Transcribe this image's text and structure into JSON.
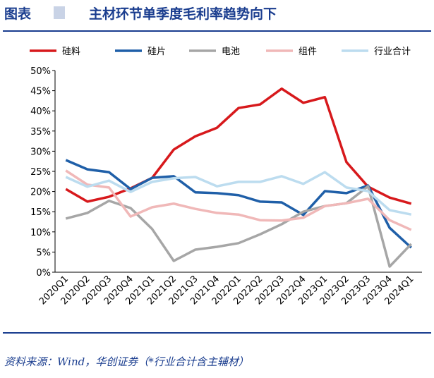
{
  "chart_data": {
    "type": "line",
    "figure_label": "图表",
    "title": "主材环节单季度毛利率趋势向下",
    "source": "资料来源：Wind，华创证券（*行业合计含主辅材）",
    "categories": [
      "2020Q1",
      "2020Q2",
      "2020Q3",
      "2020Q4",
      "2021Q1",
      "2021Q2",
      "2021Q3",
      "2021Q4",
      "2022Q1",
      "2022Q2",
      "2022Q3",
      "2022Q4",
      "2023Q1",
      "2023Q2",
      "2023Q3",
      "2023Q4",
      "2024Q1"
    ],
    "series": [
      {
        "name": "硅料",
        "color": "#d7191c",
        "values": [
          20.6,
          17.5,
          18.7,
          20.8,
          23.4,
          30.4,
          33.7,
          35.8,
          40.7,
          41.6,
          45.5,
          42.0,
          43.4,
          27.3,
          21.2,
          18.5,
          17.0
        ]
      },
      {
        "name": "硅片",
        "color": "#1f5fa8",
        "values": [
          27.8,
          25.5,
          24.8,
          20.6,
          23.4,
          23.8,
          19.8,
          19.6,
          19.1,
          17.5,
          17.3,
          14.2,
          20.1,
          19.6,
          21.5,
          11.0,
          6.1
        ]
      },
      {
        "name": "电池",
        "color": "#a6a6a6",
        "values": [
          13.3,
          14.7,
          17.7,
          15.9,
          10.7,
          2.8,
          5.6,
          6.3,
          7.2,
          9.4,
          11.9,
          15.0,
          16.4,
          17.1,
          21.3,
          1.4,
          7.0
        ]
      },
      {
        "name": "组件",
        "color": "#f0b8b8",
        "values": [
          25.2,
          21.7,
          21.0,
          13.8,
          16.1,
          17.0,
          15.7,
          14.7,
          14.3,
          12.9,
          12.8,
          13.5,
          16.4,
          17.1,
          18.2,
          12.9,
          10.5
        ]
      },
      {
        "name": "行业合计",
        "color": "#bcdcef",
        "values": [
          23.6,
          21.2,
          22.7,
          19.9,
          22.4,
          23.3,
          23.6,
          21.3,
          22.4,
          22.4,
          23.8,
          21.9,
          24.8,
          21.0,
          20.1,
          15.4,
          14.3
        ]
      }
    ],
    "ylim": [
      0,
      50
    ],
    "yticks": [
      {
        "value": 0,
        "label": "0%"
      },
      {
        "value": 5,
        "label": "5%"
      },
      {
        "value": 10,
        "label": "10%"
      },
      {
        "value": 15,
        "label": "15%"
      },
      {
        "value": 20,
        "label": "20%"
      },
      {
        "value": 25,
        "label": "25%"
      },
      {
        "value": 30,
        "label": "30%"
      },
      {
        "value": 35,
        "label": "35%"
      },
      {
        "value": 40,
        "label": "40%"
      },
      {
        "value": 45,
        "label": "45%"
      },
      {
        "value": 50,
        "label": "50%"
      }
    ],
    "grid": false,
    "legend": "top"
  }
}
